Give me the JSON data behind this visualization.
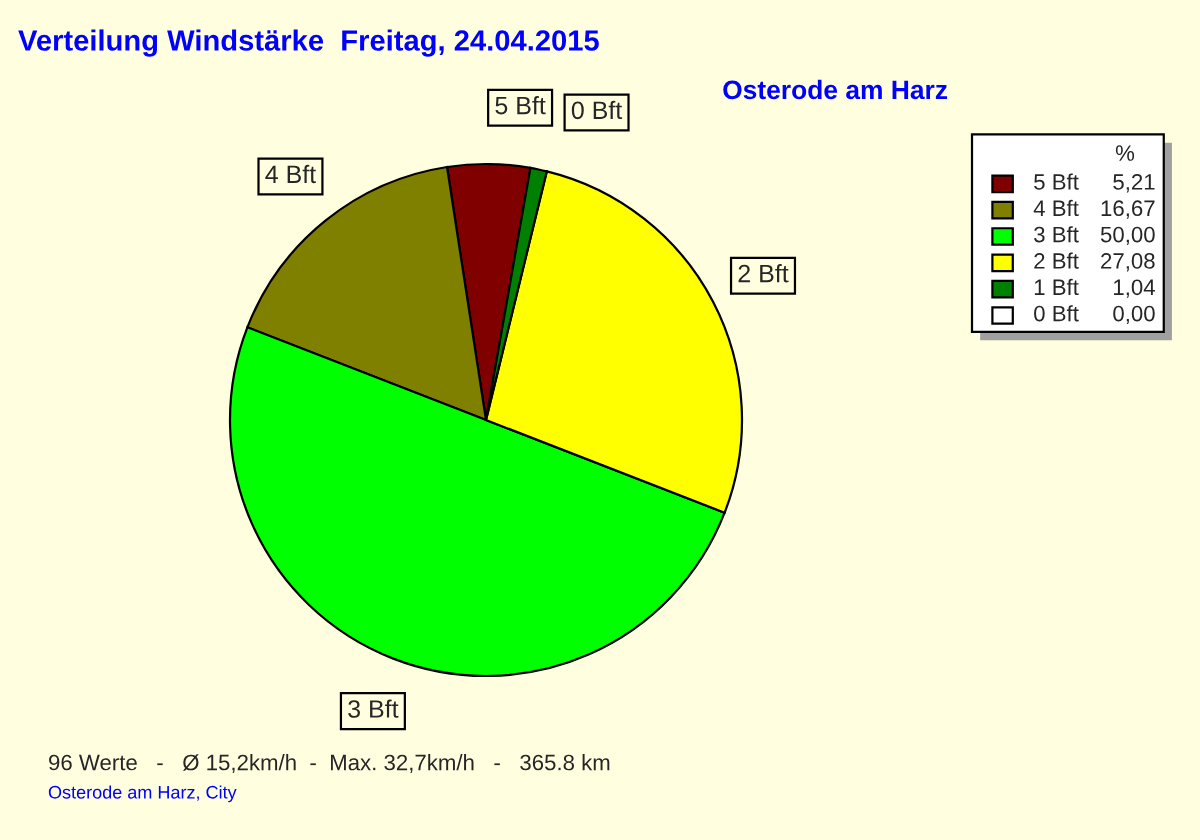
{
  "chart_data": {
    "type": "pie",
    "title": "Verteilung Windstärke  Freitag, 24.04.2015",
    "subtitle": "Osterode am Harz",
    "categories": [
      "5 Bft",
      "4 Bft",
      "3 Bft",
      "2 Bft",
      "1 Bft",
      "0 Bft"
    ],
    "values": [
      5.21,
      16.67,
      50.0,
      27.08,
      1.04,
      0.0
    ],
    "colors": [
      "#800000",
      "#808000",
      "#00ff00",
      "#ffff00",
      "#008000",
      "#ffffff"
    ],
    "value_labels": [
      "5,21",
      "16,67",
      "50,00",
      "27,08",
      "1,04",
      "0,00"
    ],
    "legend_title": "%",
    "legend": "top right",
    "annotations": [
      {
        "text": "5 Bft",
        "x": "5 Bft"
      },
      {
        "text": "4 Bft",
        "x": "4 Bft"
      },
      {
        "text": "3 Bft",
        "x": "3 Bft"
      },
      {
        "text": "2 Bft",
        "x": "2 Bft"
      },
      {
        "text": "0 Bft",
        "x": "0 Bft"
      },
      "96 Werte   -   Ø 15,2km/h  -  Max. 32,7km/h   -   365.8 km",
      "Osterode am Harz, City"
    ]
  }
}
